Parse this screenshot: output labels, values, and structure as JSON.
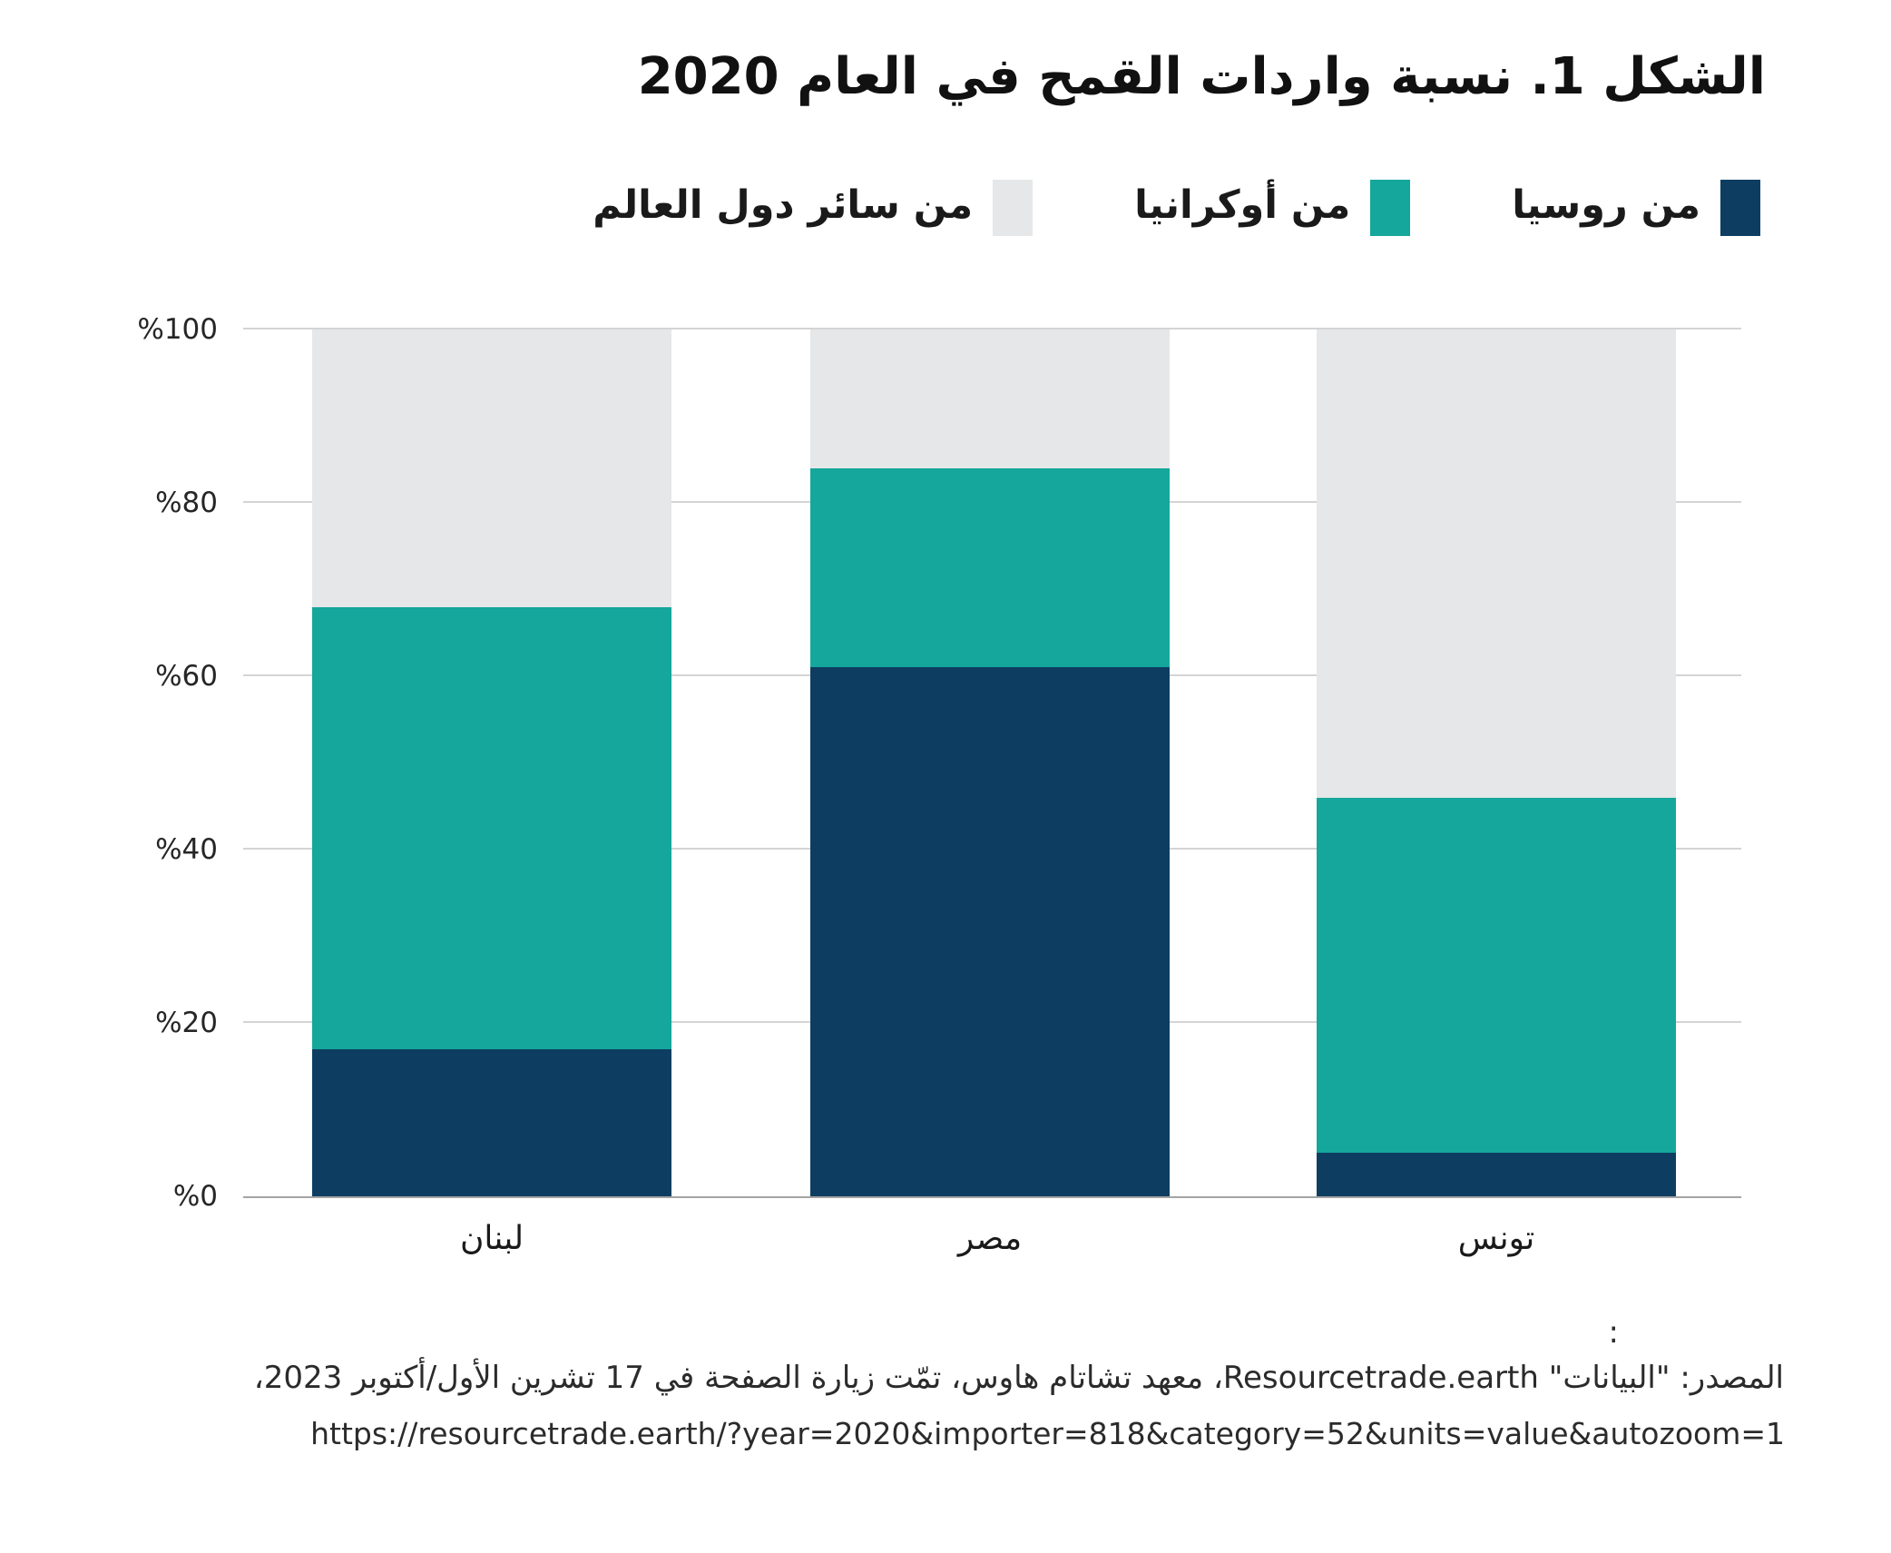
{
  "title": "الشكل 1. نسبة واردات القمح في العام 2020",
  "colors": {
    "russia": "#0d3e62",
    "ukraine": "#15a79c",
    "world": "#e5e7e8",
    "gridline": "#d4d4d4",
    "baseline": "#a3a3a3",
    "text": "#1a1a1a"
  },
  "legend": [
    {
      "key": "russia",
      "label": "من روسيا"
    },
    {
      "key": "ukraine",
      "label": "من أوكرانيا"
    },
    {
      "key": "world",
      "label": "من سائر دول العالم"
    }
  ],
  "chart_data": {
    "type": "bar",
    "stacked": true,
    "title": "الشكل 1. نسبة واردات القمح في العام 2020",
    "categories": [
      "لبنان",
      "مصر",
      "تونس"
    ],
    "series": [
      {
        "name": "من روسيا",
        "color": "#0d3e62",
        "values": [
          17,
          61,
          5
        ]
      },
      {
        "name": "من أوكرانيا",
        "color": "#15a79c",
        "values": [
          51,
          23,
          41
        ]
      },
      {
        "name": "من سائر دول العالم",
        "color": "#e5e7e8",
        "values": [
          32,
          16,
          54
        ]
      }
    ],
    "xlabel": "",
    "ylabel": "",
    "ylim": [
      0,
      100
    ],
    "yticks": [
      {
        "value": 0,
        "label": "%0"
      },
      {
        "value": 20,
        "label": "%20"
      },
      {
        "value": 40,
        "label": "%40"
      },
      {
        "value": 60,
        "label": "%60"
      },
      {
        "value": 80,
        "label": "%80"
      },
      {
        "value": 100,
        "label": "%100"
      }
    ],
    "grid": true,
    "legend_position": "top"
  },
  "footer": {
    "colon": ":",
    "source_line": "المصدر: \"البيانات\" Resourcetrade.earth، معهد تشاتام هاوس، تمّت زيارة الصفحة في 17 تشرين الأول/أكتوبر 2023،",
    "url_line": "https://resourcetrade.earth/?year=2020&importer=818&category=52&units=value&autozoom=1"
  }
}
